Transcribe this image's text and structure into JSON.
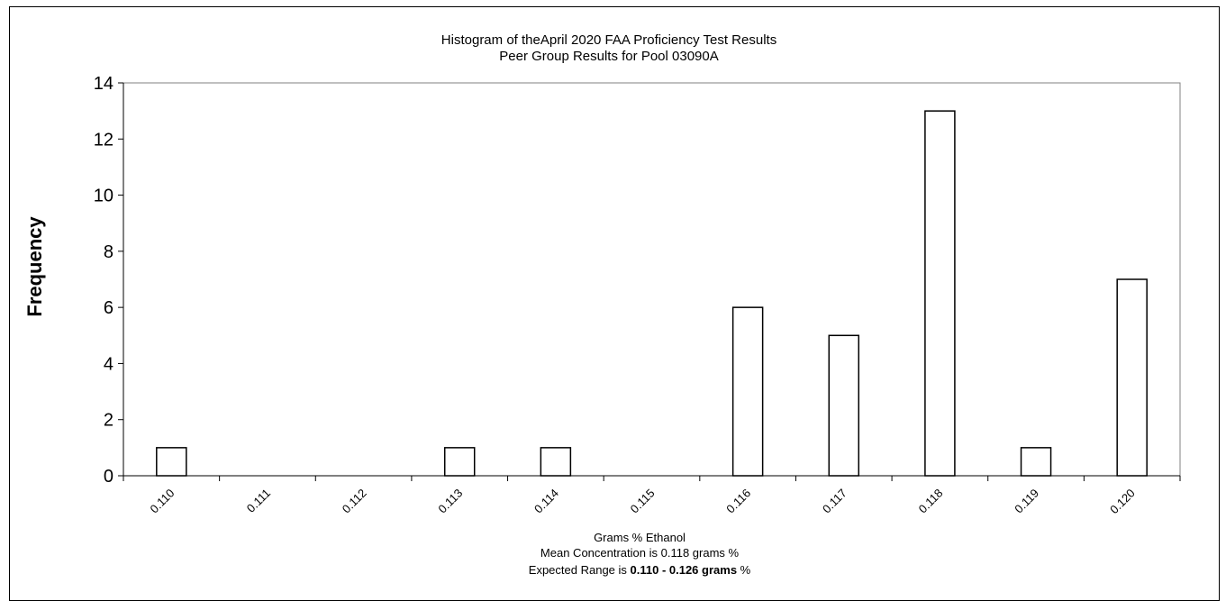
{
  "chart_data": {
    "type": "bar",
    "title": "Histogram of theApril 2020 FAA Proficiency Test  Results",
    "subtitle": "Peer Group Results for Pool  03090A",
    "ylabel": "Frequency",
    "xlabel": "Grams % Ethanol",
    "categories": [
      "0.110",
      "0.111",
      "0.112",
      "0.113",
      "0.114",
      "0.115",
      "0.116",
      "0.117",
      "0.118",
      "0.119",
      "0.120"
    ],
    "values": [
      1,
      0,
      0,
      1,
      1,
      0,
      6,
      5,
      13,
      1,
      7
    ],
    "ylim": [
      0,
      14
    ],
    "yticks": [
      0,
      2,
      4,
      6,
      8,
      10,
      12,
      14
    ],
    "grid": false,
    "bar_color": "#ffffff",
    "bar_stroke": "#000000"
  },
  "notes": {
    "mean_line": "Mean Concentration is 0.118 grams %",
    "range_prefix": "Expected Range is ",
    "range_value": "0.110 - 0.126 grams",
    "range_suffix": " %"
  }
}
